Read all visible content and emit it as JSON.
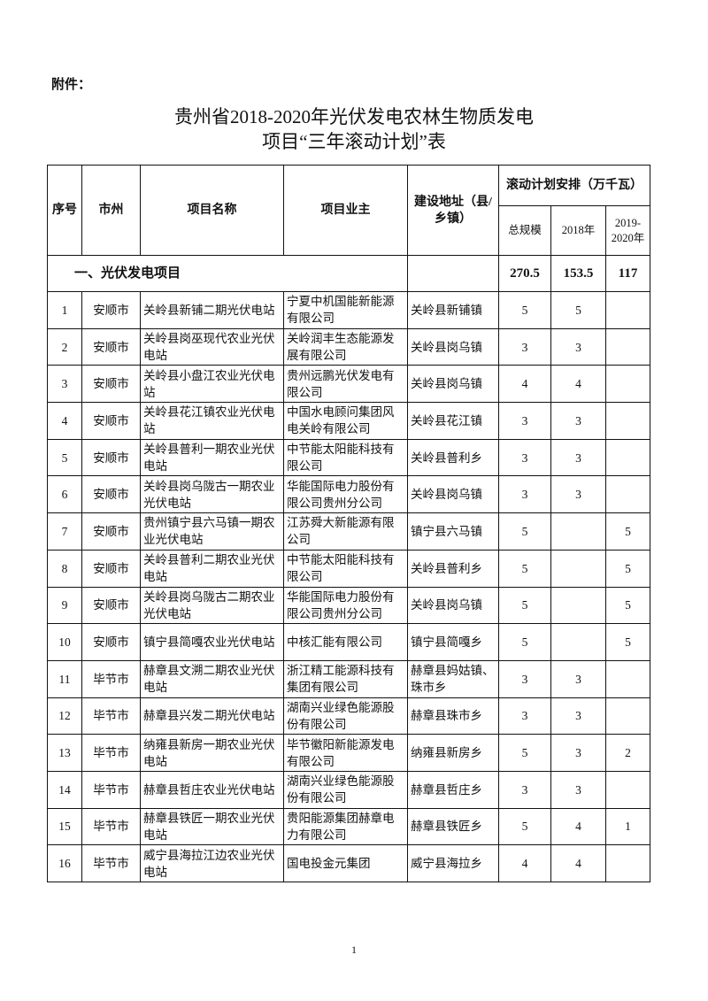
{
  "attachment_label": "附件：",
  "title_line1": "贵州省2018-2020年光伏发电农林生物质发电",
  "title_line2": "项目“三年滚动计划”表",
  "headers": {
    "seq": "序号",
    "city": "市州",
    "project_name": "项目名称",
    "owner": "项目业主",
    "location": "建设地址（县/乡镇）",
    "plan_group": "滚动计划安排（万千瓦）",
    "total": "总规模",
    "y2018": "2018年",
    "y2019_2020": "2019-2020年"
  },
  "section": {
    "label": "一、光伏发电项目",
    "total": "270.5",
    "y2018": "153.5",
    "y2019_2020": "117"
  },
  "rows": [
    {
      "seq": "1",
      "city": "安顺市",
      "name": "关岭县新铺二期光伏电站",
      "owner": "宁夏中机国能新能源有限公司",
      "location": "关岭县新铺镇",
      "total": "5",
      "y2018": "5",
      "y2019_2020": ""
    },
    {
      "seq": "2",
      "city": "安顺市",
      "name": "关岭县岗巫现代农业光伏电站",
      "owner": "关岭润丰生态能源发展有限公司",
      "location": "关岭县岗乌镇",
      "total": "3",
      "y2018": "3",
      "y2019_2020": ""
    },
    {
      "seq": "3",
      "city": "安顺市",
      "name": "关岭县小盘江农业光伏电站",
      "owner": "贵州远鹏光伏发电有限公司",
      "location": "关岭县岗乌镇",
      "total": "4",
      "y2018": "4",
      "y2019_2020": ""
    },
    {
      "seq": "4",
      "city": "安顺市",
      "name": "关岭县花江镇农业光伏电站",
      "owner": "中国水电顾问集团风电关岭有限公司",
      "location": "关岭县花江镇",
      "total": "3",
      "y2018": "3",
      "y2019_2020": ""
    },
    {
      "seq": "5",
      "city": "安顺市",
      "name": "关岭县普利一期农业光伏电站",
      "owner": "中节能太阳能科技有限公司",
      "location": "关岭县普利乡",
      "total": "3",
      "y2018": "3",
      "y2019_2020": ""
    },
    {
      "seq": "6",
      "city": "安顺市",
      "name": "关岭县岗乌陇古一期农业光伏电站",
      "owner": "华能国际电力股份有限公司贵州分公司",
      "location": "关岭县岗乌镇",
      "total": "3",
      "y2018": "3",
      "y2019_2020": ""
    },
    {
      "seq": "7",
      "city": "安顺市",
      "name": "贵州镇宁县六马镇一期农业光伏电站",
      "owner": "江苏舜大新能源有限公司",
      "location": "镇宁县六马镇",
      "total": "5",
      "y2018": "",
      "y2019_2020": "5"
    },
    {
      "seq": "8",
      "city": "安顺市",
      "name": "关岭县普利二期农业光伏电站",
      "owner": "中节能太阳能科技有限公司",
      "location": "关岭县普利乡",
      "total": "5",
      "y2018": "",
      "y2019_2020": "5"
    },
    {
      "seq": "9",
      "city": "安顺市",
      "name": "关岭县岗乌陇古二期农业光伏电站",
      "owner": "华能国际电力股份有限公司贵州分公司",
      "location": "关岭县岗乌镇",
      "total": "5",
      "y2018": "",
      "y2019_2020": "5"
    },
    {
      "seq": "10",
      "city": "安顺市",
      "name": "镇宁县简嘎农业光伏电站",
      "owner": "中核汇能有限公司",
      "location": "镇宁县简嘎乡",
      "total": "5",
      "y2018": "",
      "y2019_2020": "5"
    },
    {
      "seq": "11",
      "city": "毕节市",
      "name": "赫章县文溯二期农业光伏电站",
      "owner": "浙江精工能源科技有集团有限公司",
      "location": "赫章县妈姑镇、珠市乡",
      "total": "3",
      "y2018": "3",
      "y2019_2020": ""
    },
    {
      "seq": "12",
      "city": "毕节市",
      "name": "赫章县兴发二期光伏电站",
      "owner": "湖南兴业绿色能源股份有限公司",
      "location": "赫章县珠市乡",
      "total": "3",
      "y2018": "3",
      "y2019_2020": ""
    },
    {
      "seq": "13",
      "city": "毕节市",
      "name": "纳雍县新房一期农业光伏电站",
      "owner": "毕节徽阳新能源发电有限公司",
      "location": "纳雍县新房乡",
      "total": "5",
      "y2018": "3",
      "y2019_2020": "2"
    },
    {
      "seq": "14",
      "city": "毕节市",
      "name": "赫章县哲庄农业光伏电站",
      "owner": "湖南兴业绿色能源股份有限公司",
      "location": "赫章县哲庄乡",
      "total": "3",
      "y2018": "3",
      "y2019_2020": ""
    },
    {
      "seq": "15",
      "city": "毕节市",
      "name": "赫章县铁匠一期农业光伏电站",
      "owner": "贵阳能源集团赫章电力有限公司",
      "location": "赫章县铁匠乡",
      "total": "5",
      "y2018": "4",
      "y2019_2020": "1"
    },
    {
      "seq": "16",
      "city": "毕节市",
      "name": "威宁县海拉江边农业光伏电站",
      "owner": "国电投金元集团",
      "location": "威宁县海拉乡",
      "total": "4",
      "y2018": "4",
      "y2019_2020": ""
    }
  ],
  "page_number": "1"
}
